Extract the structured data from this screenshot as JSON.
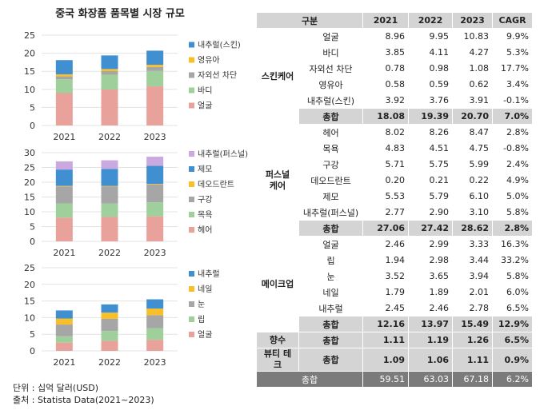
{
  "title": "중국 화장품 품목별 시장 규모",
  "chart_data": [
    {
      "type": "bar",
      "stacked": true,
      "categories": [
        "2021",
        "2022",
        "2023"
      ],
      "ylim": [
        0,
        25
      ],
      "yticks": [
        0,
        5,
        10,
        15,
        20,
        25
      ],
      "grid": true,
      "legend": "right",
      "series": [
        {
          "name": "얼굴",
          "color": "#e8a19b",
          "values": [
            8.96,
            9.95,
            10.83
          ]
        },
        {
          "name": "바디",
          "color": "#9fcf9a",
          "values": [
            3.85,
            4.11,
            4.27
          ]
        },
        {
          "name": "자외선 차단",
          "color": "#a6a6a6",
          "values": [
            0.78,
            0.98,
            1.08
          ]
        },
        {
          "name": "영유아",
          "color": "#f7c02b",
          "values": [
            0.58,
            0.59,
            0.62
          ]
        },
        {
          "name": "내추럴(스킨)",
          "color": "#3f8fd1",
          "values": [
            3.92,
            3.76,
            3.91
          ]
        }
      ]
    },
    {
      "type": "bar",
      "stacked": true,
      "categories": [
        "2021",
        "2022",
        "2023"
      ],
      "ylim": [
        0,
        30
      ],
      "yticks": [
        0,
        5,
        10,
        15,
        20,
        25,
        30
      ],
      "grid": true,
      "legend": "right",
      "series": [
        {
          "name": "헤어",
          "color": "#e8a19b",
          "values": [
            8.02,
            8.26,
            8.47
          ]
        },
        {
          "name": "목욕",
          "color": "#9fcf9a",
          "values": [
            4.83,
            4.51,
            4.75
          ]
        },
        {
          "name": "구강",
          "color": "#a6a6a6",
          "values": [
            5.71,
            5.75,
            5.99
          ]
        },
        {
          "name": "데오드란트",
          "color": "#f7c02b",
          "values": [
            0.2,
            0.21,
            0.22
          ]
        },
        {
          "name": "제모",
          "color": "#3f8fd1",
          "values": [
            5.53,
            5.79,
            6.1
          ]
        },
        {
          "name": "내추럴(퍼스널)",
          "color": "#c9a9e0",
          "values": [
            2.77,
            2.9,
            3.1
          ]
        }
      ]
    },
    {
      "type": "bar",
      "stacked": true,
      "categories": [
        "2021",
        "2022",
        "2023"
      ],
      "ylim": [
        0,
        25
      ],
      "yticks": [
        0,
        5,
        10,
        15,
        20,
        25
      ],
      "grid": true,
      "legend": "right",
      "series": [
        {
          "name": "얼굴",
          "color": "#e8a19b",
          "values": [
            2.46,
            2.99,
            3.33
          ]
        },
        {
          "name": "립",
          "color": "#9fcf9a",
          "values": [
            1.94,
            2.98,
            3.44
          ]
        },
        {
          "name": "눈",
          "color": "#a6a6a6",
          "values": [
            3.52,
            3.65,
            3.94
          ]
        },
        {
          "name": "네일",
          "color": "#f7c02b",
          "values": [
            1.79,
            1.89,
            2.01
          ]
        },
        {
          "name": "내추럴",
          "color": "#3f8fd1",
          "values": [
            2.45,
            2.46,
            2.78
          ]
        }
      ]
    }
  ],
  "notes": {
    "unit": "단위 : 십억 달러(USD)",
    "source": "출처 : Statista Data(2021~2023)"
  },
  "table": {
    "headers": [
      "구분",
      "2021",
      "2022",
      "2023",
      "CAGR"
    ],
    "groups": [
      {
        "category": "스킨케어",
        "rows": [
          {
            "label": "얼굴",
            "values": [
              "8.96",
              "9.95",
              "10.83",
              "9.9%"
            ]
          },
          {
            "label": "바디",
            "values": [
              "3.85",
              "4.11",
              "4.27",
              "5.3%"
            ]
          },
          {
            "label": "자외선 차단",
            "values": [
              "0.78",
              "0.98",
              "1.08",
              "17.7%"
            ]
          },
          {
            "label": "영유아",
            "values": [
              "0.58",
              "0.59",
              "0.62",
              "3.4%"
            ]
          },
          {
            "label": "내추럴(스킨)",
            "values": [
              "3.92",
              "3.76",
              "3.91",
              "-0.1%"
            ]
          },
          {
            "label": "총합",
            "values": [
              "18.08",
              "19.39",
              "20.70",
              "7.0%"
            ],
            "total": true
          }
        ]
      },
      {
        "category": "퍼스널 케어",
        "rows": [
          {
            "label": "헤어",
            "values": [
              "8.02",
              "8.26",
              "8.47",
              "2.8%"
            ]
          },
          {
            "label": "목욕",
            "values": [
              "4.83",
              "4.51",
              "4.75",
              "-0.8%"
            ]
          },
          {
            "label": "구강",
            "values": [
              "5.71",
              "5.75",
              "5.99",
              "2.4%"
            ]
          },
          {
            "label": "데오드란트",
            "values": [
              "0.20",
              "0.21",
              "0.22",
              "4.9%"
            ]
          },
          {
            "label": "제모",
            "values": [
              "5.53",
              "5.79",
              "6.10",
              "5.0%"
            ]
          },
          {
            "label": "내추럴(퍼스널)",
            "values": [
              "2.77",
              "2.90",
              "3.10",
              "5.8%"
            ]
          },
          {
            "label": "총합",
            "values": [
              "27.06",
              "27.42",
              "28.62",
              "2.8%"
            ],
            "total": true
          }
        ]
      },
      {
        "category": "메이크업",
        "rows": [
          {
            "label": "얼굴",
            "values": [
              "2.46",
              "2.99",
              "3.33",
              "16.3%"
            ]
          },
          {
            "label": "립",
            "values": [
              "1.94",
              "2.98",
              "3.44",
              "33.2%"
            ]
          },
          {
            "label": "눈",
            "values": [
              "3.52",
              "3.65",
              "3.94",
              "5.8%"
            ]
          },
          {
            "label": "네일",
            "values": [
              "1.79",
              "1.89",
              "2.01",
              "6.0%"
            ]
          },
          {
            "label": "내추럴",
            "values": [
              "2.45",
              "2.46",
              "2.78",
              "6.5%"
            ]
          },
          {
            "label": "총합",
            "values": [
              "12.16",
              "13.97",
              "15.49",
              "12.9%"
            ],
            "total": true
          }
        ]
      },
      {
        "category": "향수",
        "rows": [
          {
            "label": "총합",
            "values": [
              "1.11",
              "1.19",
              "1.26",
              "6.5%"
            ],
            "total": true
          }
        ]
      },
      {
        "category": "뷰티 테크",
        "rows": [
          {
            "label": "총합",
            "values": [
              "1.09",
              "1.06",
              "1.11",
              "0.9%"
            ],
            "total": true
          }
        ]
      }
    ],
    "grand_total": {
      "label": "총합",
      "values": [
        "59.51",
        "63.03",
        "67.18",
        "6.2%"
      ]
    }
  }
}
